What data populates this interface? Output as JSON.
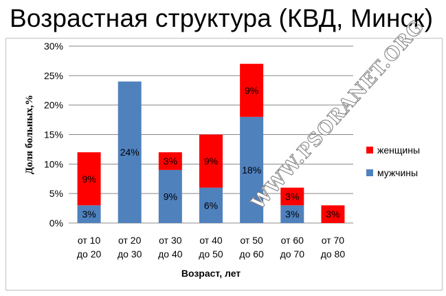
{
  "title": "Возрастная структура (КВД, Минск)",
  "watermark": "WWW.PSORANET.ORG",
  "chart_data": {
    "type": "bar",
    "stacked": true,
    "categories": [
      [
        "от 10",
        "до 20"
      ],
      [
        "от 20",
        "до 30"
      ],
      [
        "от 30",
        "до 40"
      ],
      [
        "от 40",
        "до 50"
      ],
      [
        "от 50",
        "до 60"
      ],
      [
        "от  60",
        "до 70"
      ],
      [
        "от 70",
        "до 80"
      ]
    ],
    "series": [
      {
        "name": "мужчины",
        "color": "#4f81bd",
        "values": [
          3,
          24,
          9,
          6,
          18,
          3,
          0
        ],
        "labels": [
          "3%",
          "24%",
          "9%",
          "6%",
          "18%",
          "3%",
          ""
        ]
      },
      {
        "name": "женщины",
        "color": "#ff0000",
        "values": [
          9,
          0,
          3,
          9,
          9,
          3,
          3
        ],
        "labels": [
          "9%",
          "",
          "3%",
          "9%",
          "9%",
          "3%",
          "3%"
        ]
      }
    ],
    "ylim": [
      0,
      30
    ],
    "yticks": [
      0,
      5,
      10,
      15,
      20,
      25,
      30
    ],
    "ytick_labels": [
      "0%",
      "5%",
      "10%",
      "15%",
      "20%",
      "25%",
      "30%"
    ],
    "ylabel": "Доля больных,%",
    "xlabel": "Возраст, лет",
    "grid": true,
    "legend_position": "right",
    "legend_order": [
      "женщины",
      "мужчины"
    ]
  }
}
